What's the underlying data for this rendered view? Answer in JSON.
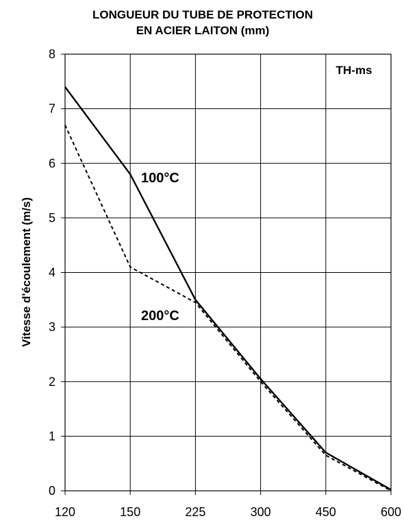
{
  "chart_data": {
    "type": "line",
    "title_line1": "LONGUEUR DU TUBE DE PROTECTION",
    "title_line2": "EN ACIER LAITON (mm)",
    "xlabel": "",
    "ylabel": "Vitesse d'écoulement (m/s)",
    "categories": [
      "120",
      "150",
      "225",
      "300",
      "450",
      "600"
    ],
    "y_ticks": [
      "0",
      "1",
      "2",
      "3",
      "4",
      "5",
      "6",
      "7",
      "8"
    ],
    "ylim": [
      0,
      8
    ],
    "grid": true,
    "annotation": "TH-ms",
    "series": [
      {
        "name": "100°C",
        "style": "solid",
        "values": [
          7.4,
          5.8,
          3.5,
          2.05,
          0.7,
          0.02
        ]
      },
      {
        "name": "200°C",
        "style": "dashed",
        "values": [
          6.7,
          4.1,
          3.45,
          2.0,
          0.65,
          0.0
        ]
      }
    ]
  }
}
